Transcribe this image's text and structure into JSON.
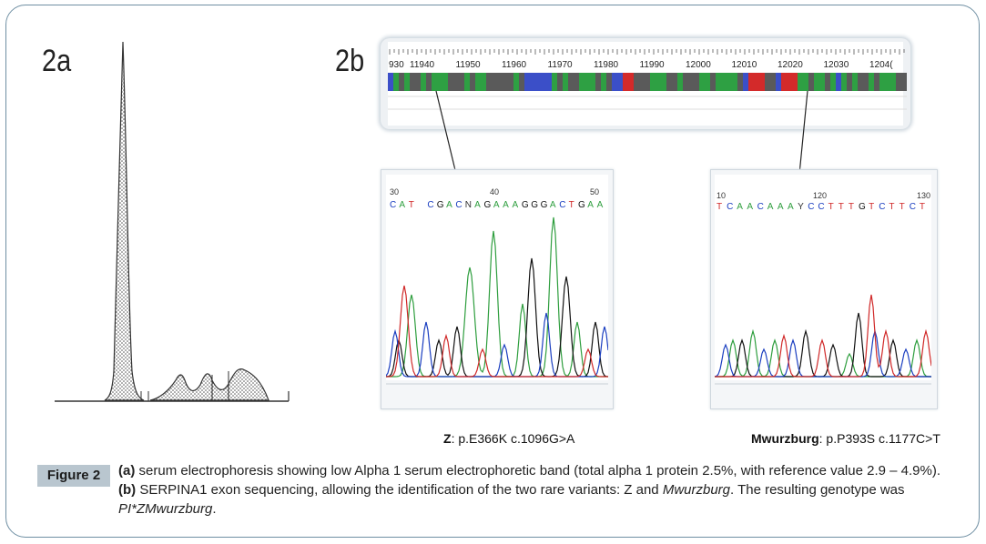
{
  "panels": {
    "a_label": "2a",
    "b_label": "2b"
  },
  "ruler": {
    "ticks": [
      "930",
      "11940",
      "11950",
      "11960",
      "11970",
      "11980",
      "11990",
      "12000",
      "12010",
      "12020",
      "12030",
      "1204("
    ]
  },
  "chromatogram_left": {
    "ticks": [
      "30",
      "40",
      "50"
    ],
    "bases": "CAT CGACNAGAAAGGGACTGAA",
    "variant_name": "Z",
    "variant_detail": ": p.E366K c.1096G>A"
  },
  "chromatogram_right": {
    "ticks": [
      "10",
      "120",
      "130"
    ],
    "bases": "TCAACAAAYCCTTTGTCTTCT",
    "variant_name": "Mwurzburg",
    "variant_detail": ": p.P393S c.1177C>T"
  },
  "colors": {
    "A": "#2e9e3e",
    "C": "#1a3ec0",
    "G": "#111111",
    "T": "#d02828",
    "frame": "#6f8fa3",
    "badge": "#b9c6cf"
  },
  "caption": {
    "figure_label": "Figure 2",
    "a_marker": "(a)",
    "a_text": " serum electrophoresis showing low Alpha 1 serum electrophoretic band (total alpha 1 protein 2.5%, with reference value 2.9 – 4.9%). ",
    "b_marker": "(b)",
    "b_text": " SERPINA1 exon sequencing, allowing the identification of the two rare variants: Z and ",
    "b_italic": "Mwurzburg",
    "b_text2": ". The resulting genotype was ",
    "genotype": "PI*ZMwurzburg",
    "end": "."
  }
}
